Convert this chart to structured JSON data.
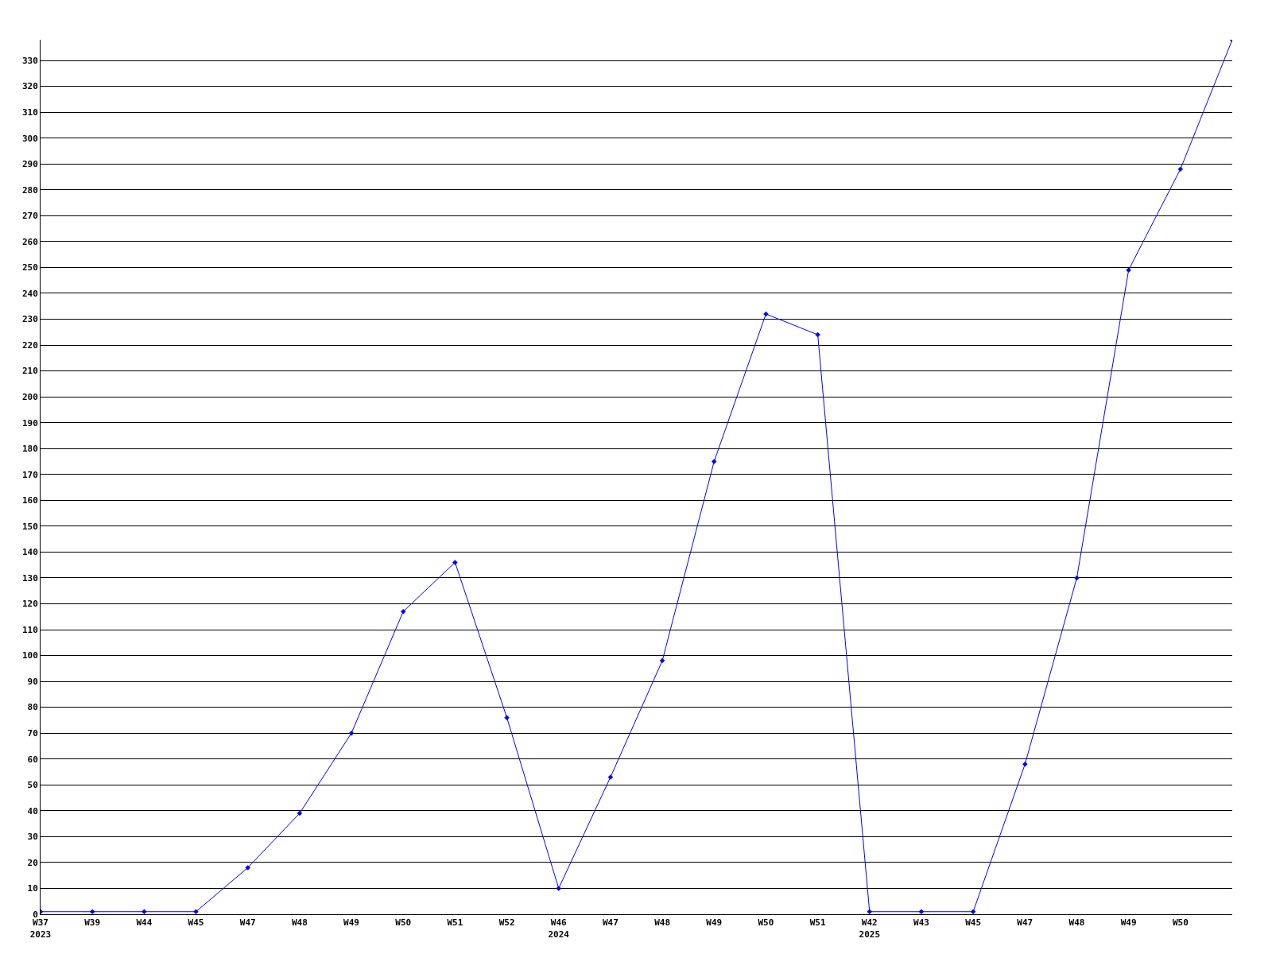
{
  "chart_data": {
    "type": "line",
    "categories": [
      "W37\n2023",
      "W39",
      "W44",
      "W45",
      "W47",
      "W48",
      "W49",
      "W50",
      "W51",
      "W52",
      "W46\n2024",
      "W47",
      "W48",
      "W49",
      "W50",
      "W51",
      "W42\n2025",
      "W43",
      "W45",
      "W47",
      "W48",
      "W49",
      "W50",
      null
    ],
    "series": [
      {
        "color": "#0000ff",
        "values": [
          1,
          1,
          1,
          1,
          18,
          39,
          70,
          117,
          136,
          76,
          10,
          53,
          98,
          175,
          232,
          224,
          1,
          1,
          1,
          58,
          130,
          249,
          288,
          338
        ]
      }
    ],
    "ylim": [
      0,
      338
    ],
    "yticks": [
      0,
      10,
      20,
      30,
      40,
      50,
      60,
      70,
      80,
      90,
      100,
      110,
      120,
      130,
      140,
      150,
      160,
      170,
      180,
      190,
      200,
      210,
      220,
      230,
      240,
      250,
      260,
      270,
      280,
      290,
      300,
      310,
      320,
      330
    ],
    "grid": "y",
    "marker": "diamond",
    "line_style": "solid"
  }
}
